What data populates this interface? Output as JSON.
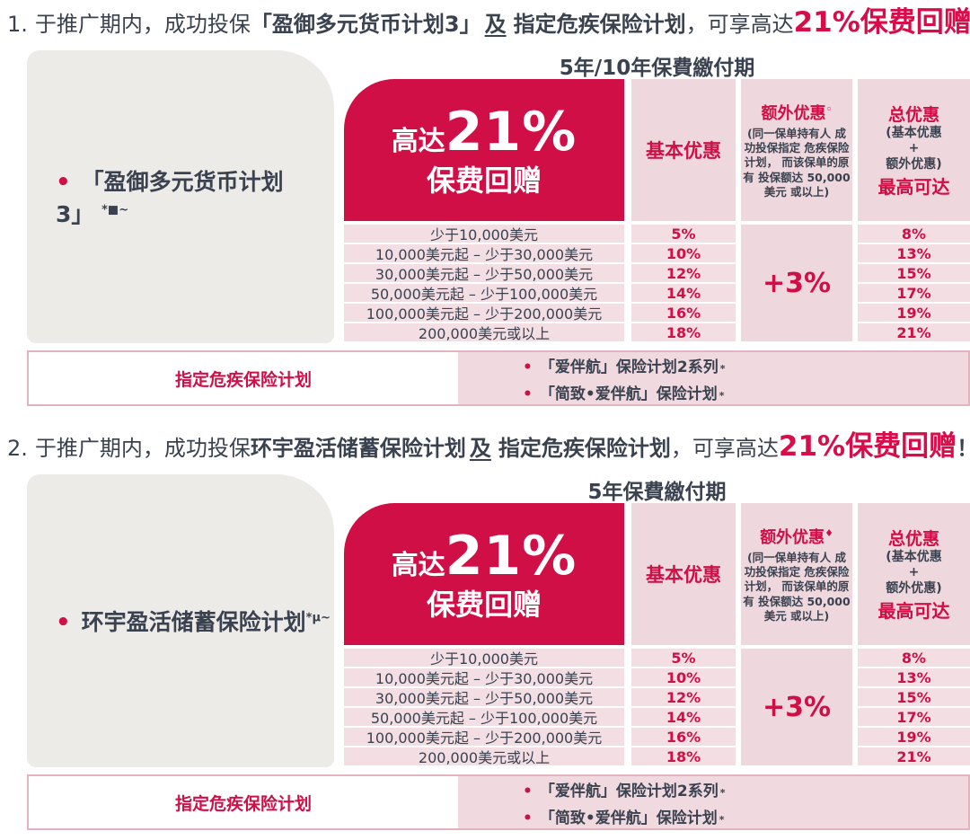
{
  "colors": {
    "crimson": "#d10f47",
    "heading_highlight": "#d80c49",
    "pink_cell": "#f2dee3",
    "pink_header": "#eed7dd",
    "gray_panel": "#edebe8",
    "band_border": "#e3b3c0",
    "dark_text": "#3a4250"
  },
  "sections": [
    {
      "heading": {
        "num": "1.",
        "t1": "于推广期内，成功投保",
        "plan": "「盈御多元货币计划3」",
        "conj": "及",
        "t2": "指定危疾保险计划",
        "t3": "，可享高达",
        "hl": "21%保费回赠",
        "excl": "！"
      },
      "plan_label": {
        "bullet": "•",
        "text": "「盈御多元货币计划3」",
        "sup": "*■~"
      },
      "table_title": "5年/10年保費繳付期",
      "promo": {
        "pre": "高达",
        "big": "21%",
        "post": "保费回赠"
      },
      "basic_header": "基本优惠",
      "extra_header": {
        "title": "额外优惠",
        "mark": "◦",
        "note": "(同一保单持有人 成功投保指定 危疾保险计划， 而该保单的原有 投保额达 50,000美元 或以上)"
      },
      "total_header": {
        "title": "总优惠",
        "sub1": "(基本优惠",
        "sub2": "+",
        "sub3": "额外优惠)",
        "max": "最高可达"
      },
      "rows": [
        {
          "band": "少于10,000美元",
          "basic": "5%",
          "total": "8%"
        },
        {
          "band": "10,000美元起 – 少于30,000美元",
          "basic": "10%",
          "total": "13%"
        },
        {
          "band": "30,000美元起 – 少于50,000美元",
          "basic": "12%",
          "total": "15%"
        },
        {
          "band": "50,000美元起 – 少于100,000美元",
          "basic": "14%",
          "total": "17%"
        },
        {
          "band": "100,000美元起 – 少于200,000美元",
          "basic": "16%",
          "total": "19%"
        },
        {
          "band": "200,000美元或以上",
          "basic": "18%",
          "total": "21%"
        }
      ],
      "extra_value": "+3%",
      "footer": {
        "label": "指定危疾保险计划",
        "items": [
          {
            "bullet": "•",
            "text": "「爱伴航」保险计划2系列",
            "sup": "*"
          },
          {
            "bullet": "•",
            "text": "「简致•爱伴航」保险计划",
            "sup": "*"
          }
        ]
      }
    },
    {
      "heading": {
        "num": "2.",
        "t1": "于推广期内，成功投保",
        "plan": "环宇盈活储蓄保险计划",
        "conj": "及",
        "t2": "指定危疾保险计划",
        "t3": "，可享高达",
        "hl": "21%保费回赠",
        "excl": "！"
      },
      "plan_label": {
        "bullet": "•",
        "text": "环宇盈活储蓄保险计划",
        "sup": "*μ~"
      },
      "table_title": "5年保費繳付期",
      "promo": {
        "pre": "高达",
        "big": "21%",
        "post": "保费回赠"
      },
      "basic_header": "基本优惠",
      "extra_header": {
        "title": "额外优惠",
        "mark": "♦",
        "note": "(同一保单持有人 成功投保指定 危疾保险计划， 而该保单的原有 投保额达 50,000美元 或以上)"
      },
      "total_header": {
        "title": "总优惠",
        "sub1": "(基本优惠",
        "sub2": "+",
        "sub3": "额外优惠)",
        "max": "最高可达"
      },
      "rows": [
        {
          "band": "少于10,000美元",
          "basic": "5%",
          "total": "8%"
        },
        {
          "band": "10,000美元起 – 少于30,000美元",
          "basic": "10%",
          "total": "13%"
        },
        {
          "band": "30,000美元起 – 少于50,000美元",
          "basic": "12%",
          "total": "15%"
        },
        {
          "band": "50,000美元起 – 少于100,000美元",
          "basic": "14%",
          "total": "17%"
        },
        {
          "band": "100,000美元起 – 少于200,000美元",
          "basic": "16%",
          "total": "19%"
        },
        {
          "band": "200,000美元或以上",
          "basic": "18%",
          "total": "21%"
        }
      ],
      "extra_value": "+3%",
      "footer": {
        "label": "指定危疾保险计划",
        "items": [
          {
            "bullet": "•",
            "text": "「爱伴航」保险计划2系列",
            "sup": "*"
          },
          {
            "bullet": "•",
            "text": "「简致•爱伴航」保险计划",
            "sup": "*"
          }
        ]
      }
    }
  ]
}
